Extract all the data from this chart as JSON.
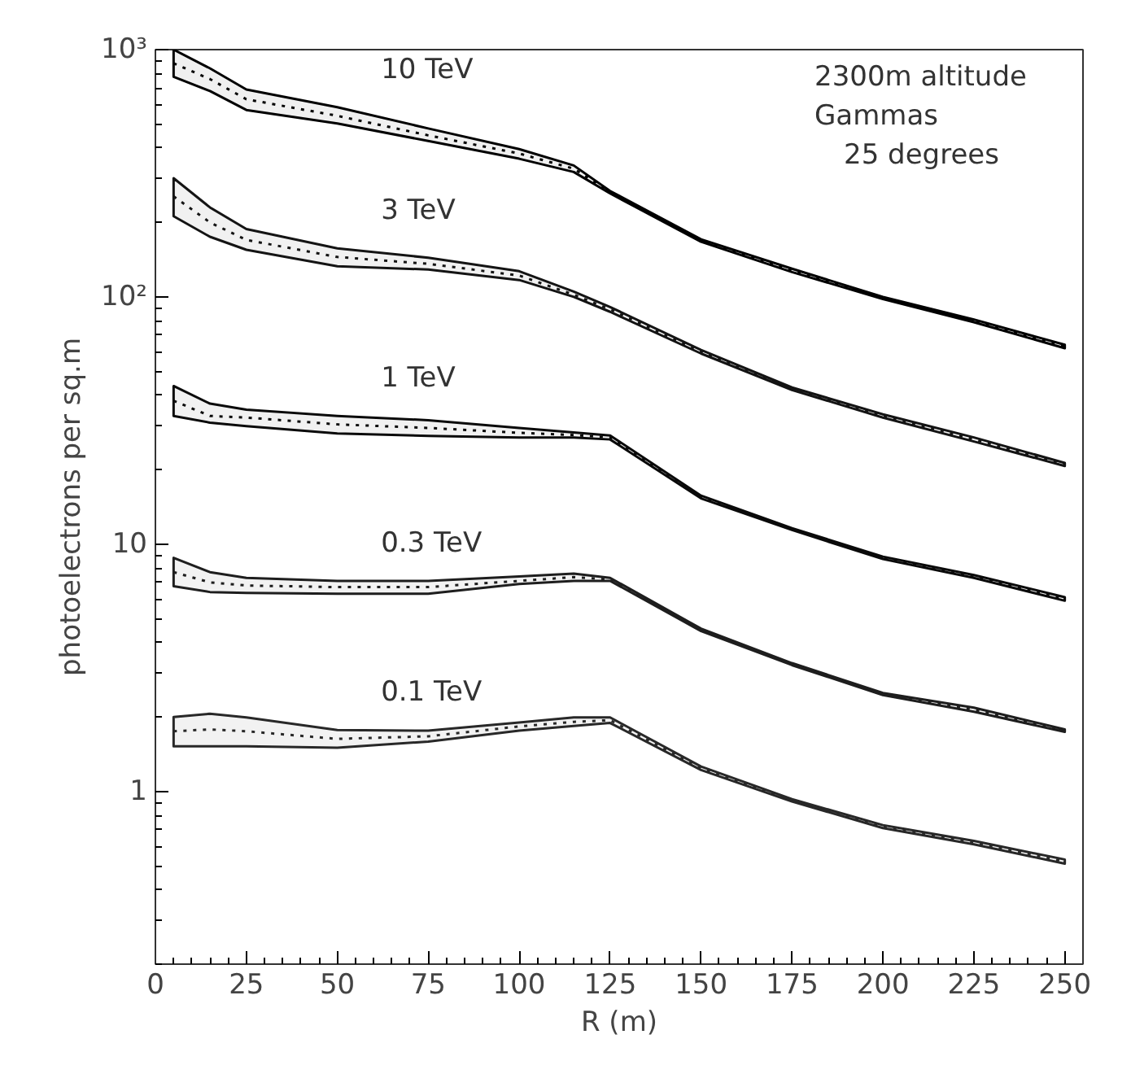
{
  "chart_data": {
    "type": "line",
    "xlabel": "R (m)",
    "ylabel": "photoelectrons per sq.m",
    "annotations": [
      "2300m altitude",
      "Gammas",
      "25 degrees"
    ],
    "x": [
      5,
      15,
      25,
      50,
      75,
      100,
      115,
      125,
      150,
      175,
      200,
      225,
      250
    ],
    "series": [
      {
        "name": "10 TeV",
        "color": "#000000",
        "values": [
          880,
          760,
          630,
          540,
          450,
          380,
          330,
          265,
          169,
          128,
          99,
          80,
          63
        ],
        "lower": [
          776,
          680,
          570,
          503,
          427,
          362,
          320,
          262,
          167,
          126,
          98,
          79,
          62
        ],
        "upper": [
          1000,
          840,
          690,
          585,
          480,
          396,
          340,
          268,
          171,
          130,
          100,
          81,
          64
        ]
      },
      {
        "name": "3 TeV",
        "color": "#141414",
        "values": [
          255,
          200,
          170,
          145,
          136,
          122,
          102,
          89,
          60,
          42.5,
          33,
          26.5,
          21
        ],
        "lower": [
          212,
          175,
          155,
          133,
          129,
          117,
          100,
          87,
          59,
          42,
          32.5,
          26,
          20.7
        ],
        "upper": [
          302,
          230,
          188,
          157,
          144,
          127,
          105,
          91,
          61,
          43,
          33.5,
          27,
          21.3
        ]
      },
      {
        "name": "1 TeV",
        "color": "#0a0a0a",
        "values": [
          38,
          33,
          32.5,
          30.5,
          29.5,
          28.2,
          27.6,
          27,
          15.5,
          11.5,
          8.8,
          7.4,
          6.0
        ],
        "lower": [
          33,
          31,
          30,
          28,
          27.4,
          27,
          27,
          26.5,
          15.3,
          11.4,
          8.7,
          7.3,
          5.9
        ],
        "upper": [
          43.6,
          37,
          35,
          33,
          31.7,
          29.5,
          28.3,
          27.5,
          15.7,
          11.6,
          8.9,
          7.5,
          6.1
        ]
      },
      {
        "name": "0.3 TeV",
        "color": "#1e1e1e",
        "values": [
          7.7,
          7.0,
          6.8,
          6.7,
          6.7,
          7.1,
          7.35,
          7.2,
          4.5,
          3.27,
          2.48,
          2.14,
          1.76
        ],
        "lower": [
          6.75,
          6.4,
          6.35,
          6.3,
          6.3,
          6.9,
          7.1,
          7.1,
          4.45,
          3.24,
          2.45,
          2.1,
          1.74
        ],
        "upper": [
          8.8,
          7.7,
          7.3,
          7.1,
          7.1,
          7.4,
          7.6,
          7.3,
          4.55,
          3.3,
          2.5,
          2.18,
          1.78
        ]
      },
      {
        "name": "0.1 TeV",
        "color": "#282828",
        "values": [
          1.75,
          1.78,
          1.75,
          1.63,
          1.67,
          1.83,
          1.91,
          1.94,
          1.24,
          0.92,
          0.72,
          0.62,
          0.52
        ],
        "lower": [
          1.52,
          1.52,
          1.52,
          1.5,
          1.59,
          1.76,
          1.84,
          1.89,
          1.22,
          0.91,
          0.71,
          0.61,
          0.51
        ],
        "upper": [
          2.0,
          2.06,
          1.99,
          1.77,
          1.76,
          1.9,
          1.99,
          1.99,
          1.26,
          0.93,
          0.73,
          0.63,
          0.53
        ]
      }
    ],
    "log": "y",
    "xlim": [
      0,
      255
    ],
    "ylim": [
      0.2,
      1000
    ],
    "xticks": [
      0,
      25,
      50,
      75,
      100,
      125,
      150,
      175,
      200,
      225,
      250
    ],
    "yticks": [
      1,
      10,
      {
        "value": 100,
        "label": "10²"
      },
      {
        "value": 1000,
        "label": "10³"
      }
    ],
    "grid": false,
    "legend": false,
    "marker": "none",
    "line_style": "dotted"
  }
}
